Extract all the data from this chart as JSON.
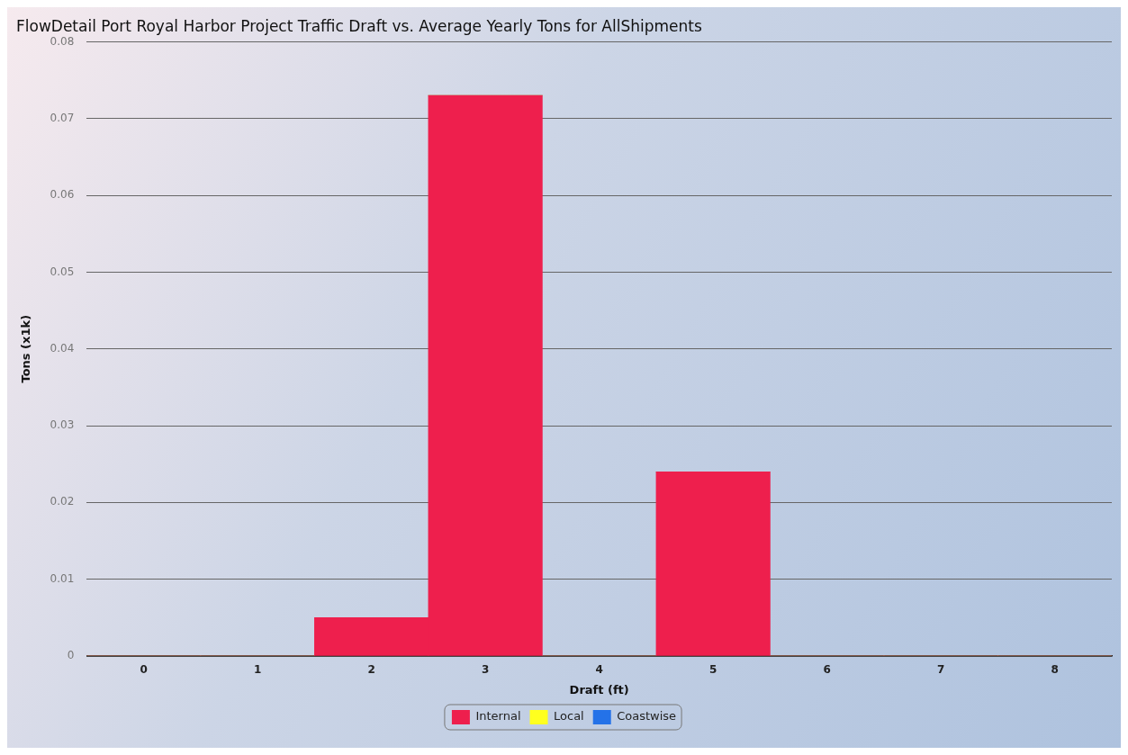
{
  "chart_data": {
    "type": "bar",
    "title": "FlowDetail Port Royal Harbor Project Traffic Draft vs. Average Yearly Tons for AllShipments",
    "xlabel": "Draft (ft)",
    "ylabel": "Tons (x1k)",
    "categories": [
      "0",
      "1",
      "2",
      "3",
      "4",
      "5",
      "6",
      "7",
      "8"
    ],
    "series": [
      {
        "name": "Internal",
        "color": "#ee1f4d",
        "values": [
          0,
          0,
          0.005,
          0.073,
          0,
          0.024,
          0,
          0,
          0
        ]
      },
      {
        "name": "Local",
        "color": "#ffff1f",
        "values": [
          0,
          0,
          0,
          0,
          0,
          0,
          0,
          0,
          0
        ]
      },
      {
        "name": "Coastwise",
        "color": "#2472e8",
        "values": [
          0,
          0,
          0,
          0,
          0,
          0,
          0,
          0,
          0
        ]
      }
    ],
    "stacked": true,
    "ylim": [
      0,
      0.08
    ],
    "yticks": [
      0,
      0.01,
      0.02,
      0.03,
      0.04,
      0.05,
      0.06,
      0.07,
      0.08
    ],
    "grid": "y",
    "legend": "bottom"
  }
}
